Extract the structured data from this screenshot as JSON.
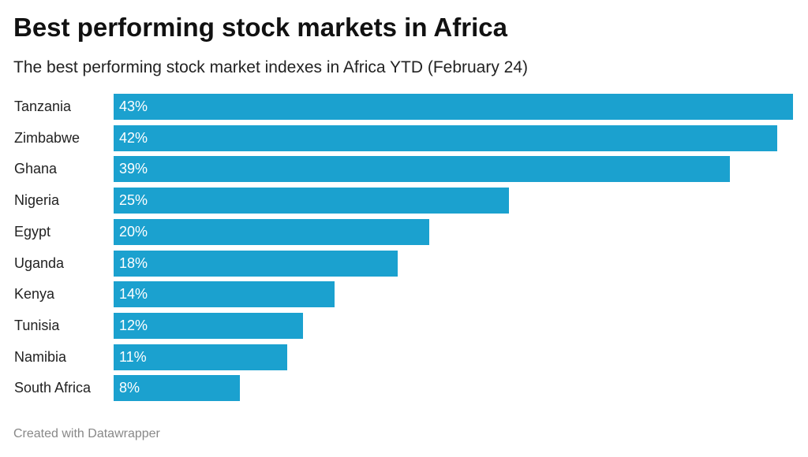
{
  "chart_data": {
    "type": "bar",
    "orientation": "horizontal",
    "title": "Best performing stock markets in Africa",
    "subtitle": "The best performing stock market indexes in Africa YTD (February 24)",
    "categories": [
      "Tanzania",
      "Zimbabwe",
      "Ghana",
      "Nigeria",
      "Egypt",
      "Uganda",
      "Kenya",
      "Tunisia",
      "Namibia",
      "South Africa"
    ],
    "values": [
      43,
      42,
      39,
      25,
      20,
      18,
      14,
      12,
      11,
      8
    ],
    "value_labels": [
      "43%",
      "42%",
      "39%",
      "25%",
      "20%",
      "18%",
      "14%",
      "12%",
      "11%",
      "8%"
    ],
    "unit": "%",
    "xlim": [
      0,
      43
    ],
    "grid": false,
    "bar_color": "#1ba1cf"
  },
  "footer": "Created with Datawrapper"
}
